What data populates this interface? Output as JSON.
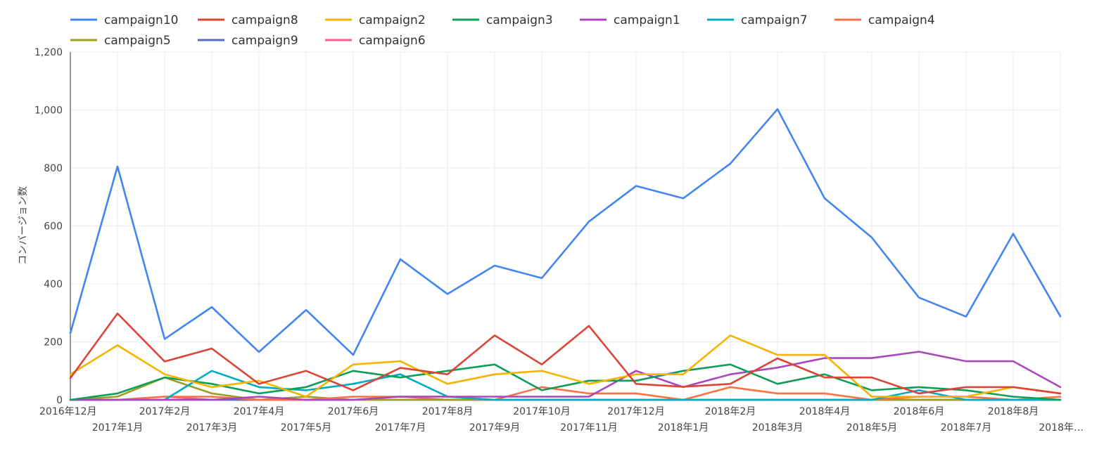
{
  "chart_data": {
    "type": "line",
    "title": "",
    "xlabel": "",
    "ylabel": "コンバージョン数",
    "ylim": [
      0,
      1200
    ],
    "yticks": [
      0,
      200,
      400,
      600,
      800,
      1000,
      1200
    ],
    "ytick_labels": [
      "0",
      "200",
      "400",
      "600",
      "800",
      "1,000",
      "1,200"
    ],
    "grid": true,
    "legend_position": "top-left",
    "categories": [
      "2016年12月",
      "2017年1月",
      "2017年2月",
      "2017年3月",
      "2017年4月",
      "2017年5月",
      "2017年6月",
      "2017年7月",
      "2017年8月",
      "2017年9月",
      "2017年10月",
      "2017年11月",
      "2017年12月",
      "2018年1月",
      "2018年2月",
      "2018年3月",
      "2018年4月",
      "2018年5月",
      "2018年6月",
      "2018年7月",
      "2018年8月",
      "2018年…"
    ],
    "series": [
      {
        "name": "campaign10",
        "color": "#4285f4",
        "values": [
          230,
          805,
          210,
          320,
          165,
          310,
          155,
          485,
          365,
          463,
          420,
          615,
          738,
          695,
          815,
          1003,
          695,
          560,
          353,
          287,
          573,
          288
        ]
      },
      {
        "name": "campaign8",
        "color": "#db4437",
        "values": [
          75,
          298,
          132,
          177,
          55,
          100,
          33,
          110,
          88,
          222,
          122,
          255,
          55,
          45,
          55,
          143,
          77,
          77,
          22,
          44,
          44,
          22
        ]
      },
      {
        "name": "campaign2",
        "color": "#f4b400",
        "values": [
          88,
          188,
          88,
          44,
          66,
          11,
          122,
          133,
          55,
          88,
          100,
          55,
          88,
          88,
          222,
          155,
          155,
          11,
          11,
          11,
          44,
          22
        ]
      },
      {
        "name": "campaign3",
        "color": "#0f9d58",
        "values": [
          0,
          22,
          77,
          55,
          22,
          44,
          100,
          77,
          100,
          122,
          33,
          66,
          66,
          100,
          122,
          55,
          88,
          33,
          44,
          33,
          11,
          0
        ]
      },
      {
        "name": "campaign1",
        "color": "#ab47bc",
        "values": [
          0,
          0,
          0,
          0,
          11,
          0,
          0,
          11,
          11,
          11,
          11,
          11,
          100,
          44,
          88,
          111,
          144,
          144,
          166,
          133,
          133,
          44
        ]
      },
      {
        "name": "campaign7",
        "color": "#00acc1",
        "values": [
          0,
          0,
          0,
          100,
          44,
          33,
          55,
          88,
          11,
          0,
          0,
          0,
          0,
          0,
          0,
          0,
          0,
          0,
          33,
          0,
          0,
          0
        ]
      },
      {
        "name": "campaign4",
        "color": "#ff7043",
        "values": [
          0,
          0,
          11,
          11,
          0,
          0,
          11,
          11,
          11,
          0,
          44,
          22,
          22,
          0,
          44,
          22,
          22,
          0,
          11,
          11,
          0,
          11
        ]
      },
      {
        "name": "campaign5",
        "color": "#9e9d24",
        "values": [
          0,
          11,
          77,
          22,
          0,
          11,
          0,
          0,
          0,
          0,
          0,
          0,
          0,
          0,
          0,
          0,
          0,
          0,
          0,
          0,
          0,
          0
        ]
      },
      {
        "name": "campaign9",
        "color": "#5c6bc0",
        "values": [
          0,
          0,
          0,
          0,
          0,
          0,
          0,
          0,
          0,
          0,
          0,
          0,
          0,
          0,
          0,
          0,
          0,
          0,
          0,
          0,
          0,
          0
        ]
      },
      {
        "name": "campaign6",
        "color": "#f06292",
        "values": [
          0,
          0,
          11,
          0,
          0,
          0,
          0,
          11,
          0,
          0,
          0,
          0,
          0,
          0,
          0,
          0,
          0,
          0,
          0,
          0,
          0,
          0
        ]
      }
    ]
  }
}
